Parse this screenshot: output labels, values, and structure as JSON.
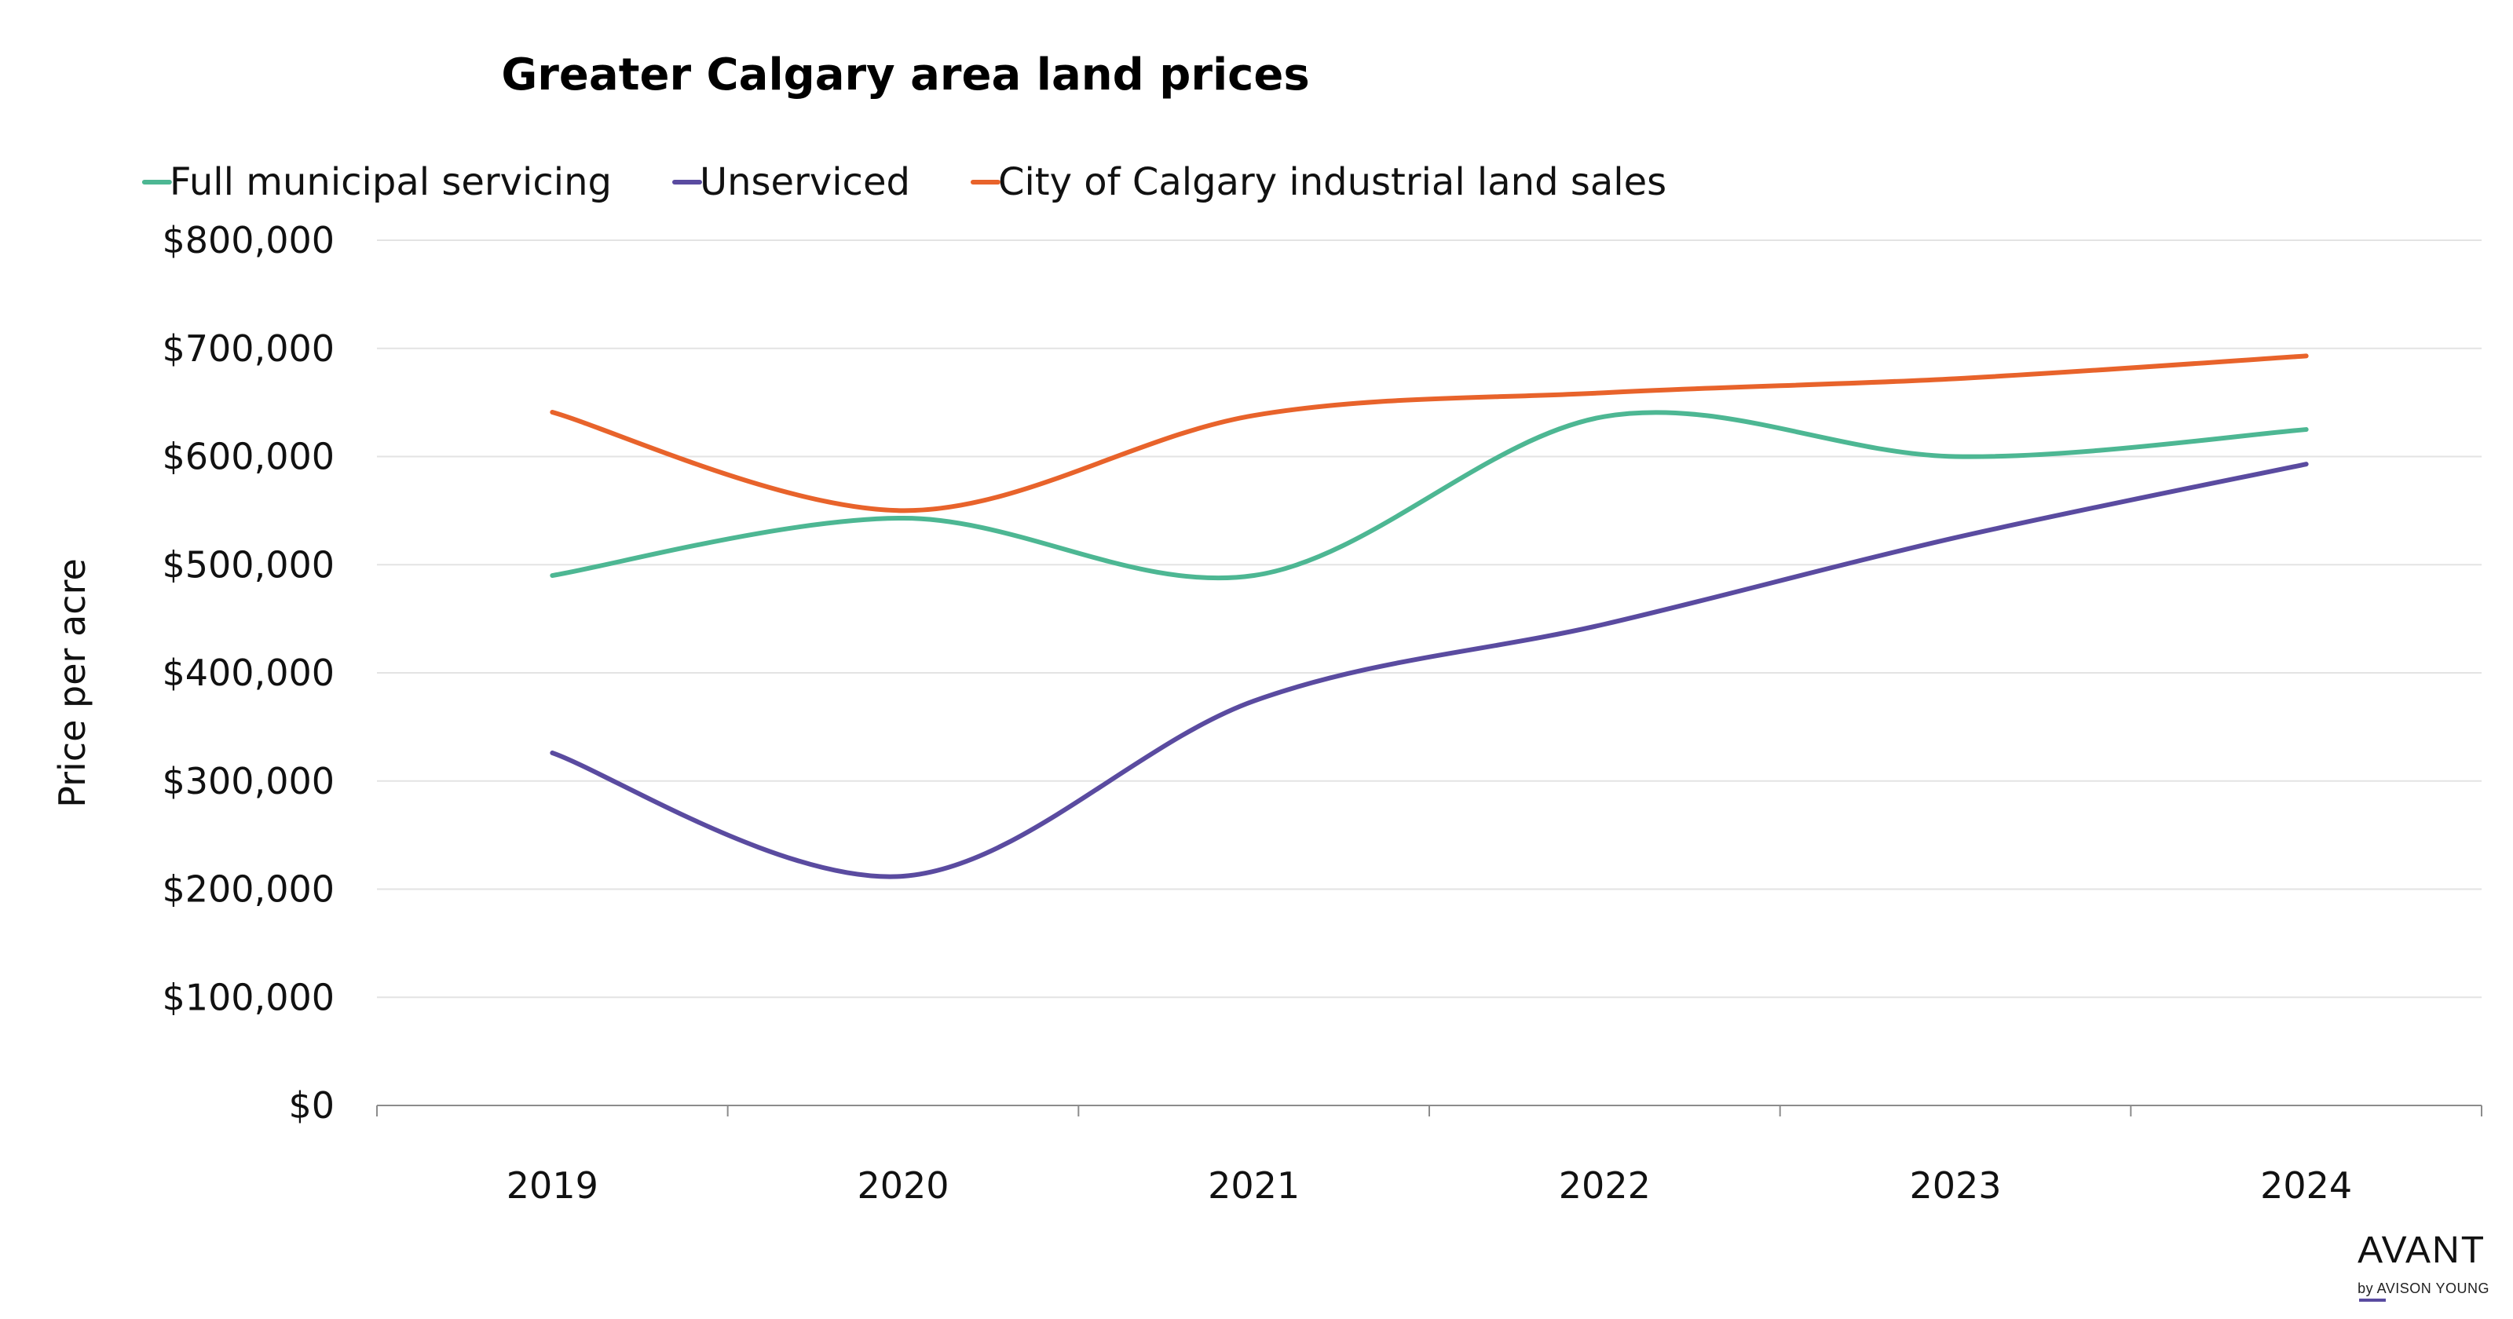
{
  "chart_data": {
    "type": "line",
    "title": "Greater Calgary area land prices",
    "xlabel": "",
    "ylabel": "Price per acre",
    "categories": [
      "2019",
      "2020",
      "2021",
      "2022",
      "2023",
      "2024"
    ],
    "ylim": [
      0,
      800000
    ],
    "yticks": [
      0,
      100000,
      200000,
      300000,
      400000,
      500000,
      600000,
      700000,
      800000
    ],
    "ytick_labels": [
      "$0",
      "$100,000",
      "$200,000",
      "$300,000",
      "$400,000",
      "$500,000",
      "$600,000",
      "$700,000",
      "$800,000"
    ],
    "grid": true,
    "legend_position": "top-center",
    "series": [
      {
        "name": "Full municipal servicing",
        "color": "#4db793",
        "values": [
          490000,
          543000,
          490000,
          637000,
          600000,
          625000
        ]
      },
      {
        "name": "Unserviced",
        "color": "#5a4ba0",
        "values": [
          326000,
          212000,
          374000,
          445000,
          525000,
          593000
        ]
      },
      {
        "name": "City of Calgary industrial land sales",
        "color": "#e8632b",
        "values": [
          641000,
          550000,
          638000,
          659000,
          672000,
          693000
        ]
      }
    ]
  },
  "brand": {
    "name": "AVANT",
    "sub": "by AVISON YOUNG"
  }
}
